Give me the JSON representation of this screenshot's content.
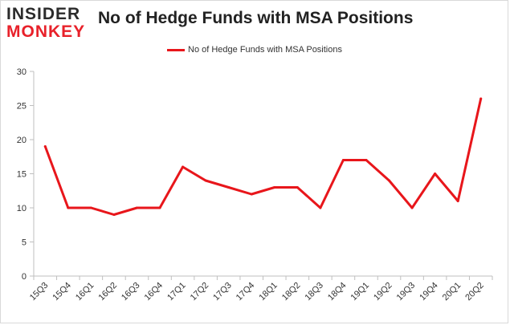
{
  "logo": {
    "line1": "INSIDER",
    "line2": "MONKEY"
  },
  "chart_data": {
    "type": "line",
    "title": "No of Hedge Funds with MSA Positions",
    "xlabel": "",
    "ylabel": "",
    "categories": [
      "15Q3",
      "15Q4",
      "16Q1",
      "16Q2",
      "16Q3",
      "16Q4",
      "17Q1",
      "17Q2",
      "17Q3",
      "17Q4",
      "18Q1",
      "18Q2",
      "18Q3",
      "18Q4",
      "19Q1",
      "19Q2",
      "19Q3",
      "19Q4",
      "20Q1",
      "20Q2"
    ],
    "series": [
      {
        "name": "No of Hedge Funds with MSA Positions",
        "values": [
          19,
          10,
          10,
          9,
          10,
          10,
          16,
          14,
          13,
          12,
          13,
          13,
          10,
          17,
          17,
          14,
          10,
          15,
          11,
          26
        ],
        "color": "#e8161b"
      }
    ],
    "ylim": [
      0,
      30
    ],
    "yticks": [
      0,
      5,
      10,
      15,
      20,
      25,
      30
    ],
    "grid": false,
    "legend_position": "top-center"
  }
}
